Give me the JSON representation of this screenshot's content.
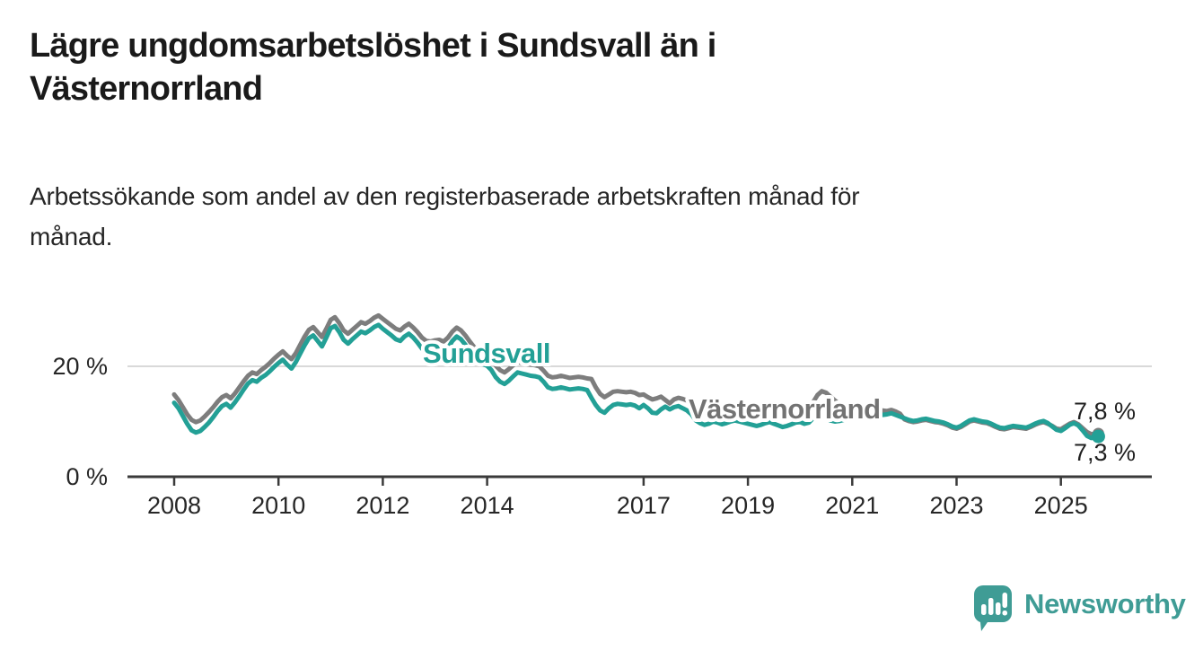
{
  "header": {
    "title_line1": "Lägre ungdomsarbetslöshet i Sundsvall än i",
    "title_line2": "Västernorrland",
    "subtitle_line1": "Arbetssökande som andel av den registerbaserade arbetskraften månad för",
    "subtitle_line2": "månad."
  },
  "chart_data": {
    "type": "line",
    "title": "Lägre ungdomsarbetslöshet i Sundsvall än i Västernorrland",
    "subtitle": "Arbetssökande som andel av den registerbaserade arbetskraften månad för månad.",
    "unit": "%",
    "frequency": "monthly",
    "x_start_year": 2008,
    "x_start_month": 1,
    "x_end_year": 2025,
    "x_end_month": 9,
    "x_tick_years": [
      2008,
      2010,
      2012,
      2014,
      2017,
      2019,
      2021,
      2023,
      2025
    ],
    "y_ticks": [
      {
        "value": 0,
        "label": "0 %"
      },
      {
        "value": 20,
        "label": "20 %"
      }
    ],
    "ylim": [
      0,
      30
    ],
    "grid": "horizontal gridline at 20% only",
    "legend_position": "inline labels on lines",
    "colors": {
      "sundsvall": "#23a096",
      "vasternorrland": "#7d7d7d",
      "vasternorrland_label": "#737373",
      "axis": "#3a3a3a",
      "gridline": "#d9d9d9",
      "tick_text": "#262626",
      "value_text": "#1f1f1f",
      "brand_teal": "#3f9c95"
    },
    "series": [
      {
        "name": "Sundsvall",
        "color": "#23a096",
        "end_label": "7,3 %",
        "end_value": 7.3,
        "values": [
          13.4,
          12.4,
          11.0,
          9.6,
          8.4,
          8.0,
          8.3,
          9.0,
          9.8,
          10.8,
          11.9,
          12.8,
          13.2,
          12.5,
          13.5,
          14.6,
          15.8,
          16.9,
          17.5,
          17.2,
          17.9,
          18.4,
          19.1,
          19.9,
          20.6,
          21.2,
          20.3,
          19.6,
          20.8,
          22.3,
          23.8,
          25.1,
          25.6,
          24.6,
          23.6,
          25.2,
          26.9,
          27.3,
          26.2,
          24.8,
          24.1,
          24.9,
          25.6,
          26.3,
          26.0,
          26.5,
          27.1,
          27.5,
          26.8,
          26.2,
          25.6,
          24.9,
          24.6,
          25.4,
          25.9,
          25.2,
          24.3,
          23.2,
          22.5,
          22.4,
          22.6,
          22.7,
          22.4,
          23.3,
          24.6,
          25.4,
          24.9,
          23.9,
          22.7,
          21.6,
          20.9,
          20.4,
          20.1,
          19.3,
          18.0,
          17.2,
          16.8,
          17.4,
          18.2,
          18.9,
          18.7,
          18.5,
          18.3,
          18.2,
          18.0,
          17.2,
          16.2,
          15.9,
          16.0,
          16.2,
          16.0,
          15.8,
          15.9,
          16.0,
          15.9,
          15.7,
          14.3,
          13.0,
          12.0,
          11.6,
          12.4,
          13.0,
          13.2,
          13.1,
          13.0,
          13.1,
          12.9,
          12.4,
          13.0,
          12.4,
          11.6,
          11.5,
          12.2,
          12.7,
          12.2,
          12.6,
          12.8,
          12.4,
          12.0,
          11.3,
          10.2,
          9.7,
          9.4,
          9.6,
          10.0,
          9.8,
          9.5,
          9.7,
          10.0,
          10.2,
          10.0,
          9.8,
          9.6,
          9.4,
          9.2,
          9.4,
          9.7,
          9.9,
          9.6,
          9.3,
          9.0,
          9.2,
          9.5,
          9.8,
          9.9,
          9.6,
          9.8,
          10.6,
          11.3,
          11.0,
          10.5,
          10.2,
          10.0,
          10.1,
          10.3,
          10.5,
          11.0,
          11.2,
          11.4,
          11.6,
          11.8,
          11.6,
          11.4,
          11.2,
          11.3,
          11.5,
          11.2,
          10.9,
          10.6,
          10.3,
          10.1,
          10.2,
          10.4,
          10.5,
          10.3,
          10.1,
          10.0,
          9.8,
          9.5,
          9.1,
          8.9,
          9.2,
          9.7,
          10.2,
          10.4,
          10.2,
          10.0,
          9.9,
          9.6,
          9.2,
          8.9,
          8.8,
          9.0,
          9.2,
          9.1,
          9.0,
          8.9,
          9.2,
          9.6,
          9.9,
          10.1,
          9.7,
          9.1,
          8.5,
          8.3,
          8.8,
          9.4,
          9.7,
          9.3,
          8.4,
          7.4,
          7.0,
          7.3
        ]
      },
      {
        "name": "Västernorrland",
        "color": "#7d7d7d",
        "end_label": "7,8 %",
        "end_value": 7.8,
        "values": [
          14.9,
          13.9,
          12.6,
          11.3,
          10.3,
          9.9,
          10.2,
          10.9,
          11.7,
          12.6,
          13.6,
          14.4,
          14.8,
          14.2,
          15.1,
          16.2,
          17.3,
          18.3,
          18.9,
          18.6,
          19.3,
          19.9,
          20.6,
          21.4,
          22.1,
          22.7,
          21.9,
          21.3,
          22.4,
          23.9,
          25.4,
          26.6,
          27.1,
          26.2,
          25.3,
          26.8,
          28.4,
          28.9,
          27.8,
          26.5,
          25.9,
          26.6,
          27.3,
          28.0,
          27.7,
          28.2,
          28.8,
          29.2,
          28.6,
          28.0,
          27.4,
          26.8,
          26.5,
          27.2,
          27.7,
          27.0,
          26.2,
          25.2,
          24.6,
          24.5,
          24.7,
          24.8,
          24.5,
          25.2,
          26.3,
          27.0,
          26.5,
          25.6,
          24.5,
          23.5,
          22.9,
          22.4,
          22.1,
          21.3,
          20.1,
          19.3,
          18.9,
          19.5,
          20.2,
          20.8,
          20.6,
          20.4,
          20.3,
          20.2,
          20.0,
          19.2,
          18.3,
          18.0,
          18.1,
          18.3,
          18.1,
          17.9,
          18.0,
          18.1,
          18.0,
          17.8,
          17.7,
          16.2,
          15.0,
          14.4,
          14.9,
          15.4,
          15.5,
          15.4,
          15.3,
          15.4,
          15.2,
          14.8,
          14.9,
          14.4,
          14.0,
          14.2,
          14.5,
          13.9,
          13.3,
          14.0,
          14.3,
          14.1,
          13.8,
          13.3,
          12.9,
          12.4,
          12.1,
          12.3,
          12.6,
          12.4,
          12.2,
          12.3,
          12.5,
          12.7,
          12.5,
          12.3,
          12.1,
          11.9,
          11.7,
          11.8,
          12.0,
          12.2,
          11.9,
          11.6,
          11.4,
          11.5,
          11.7,
          11.9,
          12.2,
          11.9,
          12.4,
          13.5,
          14.8,
          15.5,
          15.2,
          14.5,
          13.8,
          13.2,
          12.8,
          12.6,
          12.5,
          12.4,
          12.3,
          12.4,
          12.5,
          12.3,
          12.1,
          12.0,
          11.9,
          12.1,
          11.8,
          11.4,
          10.4,
          10.1,
          9.9,
          10.0,
          10.2,
          10.3,
          10.1,
          9.9,
          9.8,
          9.6,
          9.3,
          8.9,
          8.7,
          9.0,
          9.5,
          10.0,
          10.2,
          10.0,
          9.8,
          9.7,
          9.4,
          9.0,
          8.7,
          8.6,
          8.8,
          9.0,
          8.9,
          8.8,
          8.7,
          9.0,
          9.4,
          9.7,
          9.9,
          9.6,
          9.2,
          8.7,
          8.6,
          9.1,
          9.6,
          9.9,
          9.5,
          8.8,
          8.1,
          7.7,
          7.8
        ]
      }
    ]
  },
  "footer": {
    "brand": "Newsworthy"
  }
}
